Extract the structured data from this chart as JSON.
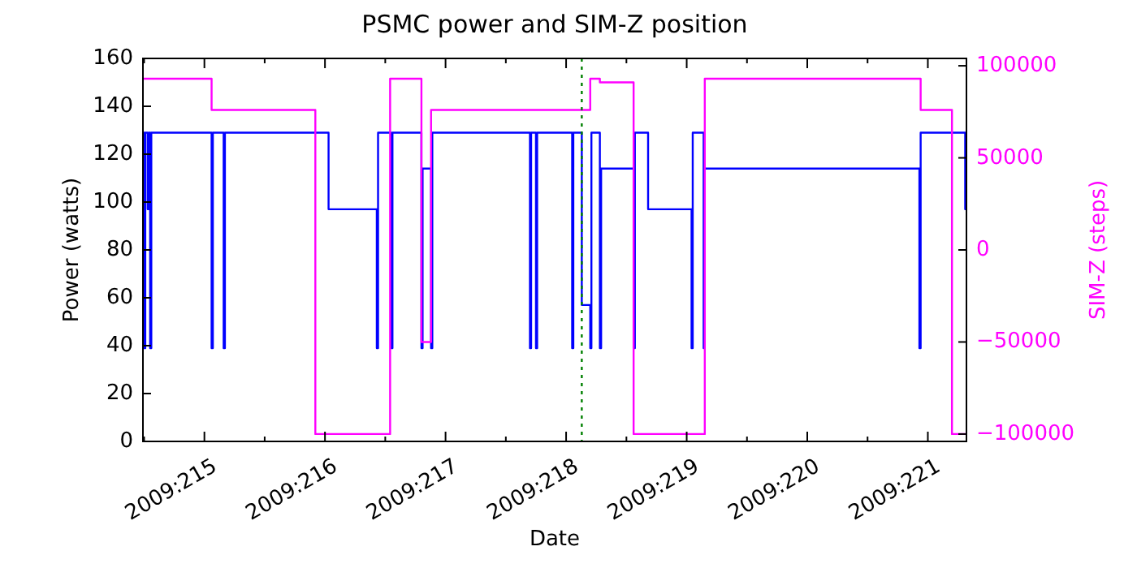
{
  "chart_data": {
    "type": "step",
    "title": "PSMC power and SIM-Z position",
    "xlabel": "Date",
    "ylabel": "Power (watts)",
    "y2label": "SIM-Z (steps)",
    "xlim": [
      "2009-08-02T11:46",
      "2009-08-09T07:41"
    ],
    "xticks": [
      {
        "value": "2009-08-02T12:00",
        "label": null
      },
      {
        "value": "2009-08-03",
        "label": "2009:215"
      },
      {
        "value": "2009-08-03T12:00",
        "label": null
      },
      {
        "value": "2009-08-04",
        "label": "2009:216"
      },
      {
        "value": "2009-08-04T12:00",
        "label": null
      },
      {
        "value": "2009-08-05",
        "label": "2009:217"
      },
      {
        "value": "2009-08-05T12:00",
        "label": null
      },
      {
        "value": "2009-08-06",
        "label": "2009:218"
      },
      {
        "value": "2009-08-06T12:00",
        "label": null
      },
      {
        "value": "2009-08-07",
        "label": "2009:219"
      },
      {
        "value": "2009-08-07T12:00",
        "label": null
      },
      {
        "value": "2009-08-08",
        "label": "2009:220"
      },
      {
        "value": "2009-08-08T12:00",
        "label": null
      },
      {
        "value": "2009-08-09",
        "label": "2009:221"
      }
    ],
    "ylim": [
      0,
      160
    ],
    "yticks": [
      0,
      20,
      40,
      60,
      80,
      100,
      120,
      140,
      160
    ],
    "y2lim": [
      -104000,
      104000
    ],
    "y2ticks": [
      -100000,
      -50000,
      0,
      50000,
      100000
    ],
    "grid": false,
    "series": [
      {
        "color": "#0000ff",
        "x": [
          "2009-08-02T11:46",
          "2009-08-02T12:00",
          "2009-08-02T12:14",
          "2009-08-02T12:43",
          "2009-08-02T12:58",
          "2009-08-02T13:12",
          "2009-08-02T13:26",
          "2009-08-03T01:26",
          "2009-08-03T01:41",
          "2009-08-03T03:50",
          "2009-08-03T04:05",
          "2009-08-04T00:43",
          "2009-08-04T10:19",
          "2009-08-04T10:34",
          "2009-08-04T13:12",
          "2009-08-04T13:26",
          "2009-08-04T19:12",
          "2009-08-04T19:26",
          "2009-08-04T21:07",
          "2009-08-04T21:22",
          "2009-08-05T16:48",
          "2009-08-05T17:02",
          "2009-08-05T18:00",
          "2009-08-05T18:14",
          "2009-08-06T01:12",
          "2009-08-06T01:26",
          "2009-08-06T03:07",
          "2009-08-06T04:48",
          "2009-08-06T05:02",
          "2009-08-06T06:43",
          "2009-08-06T06:58",
          "2009-08-06T13:26",
          "2009-08-06T13:41",
          "2009-08-06T16:19",
          "2009-08-07T00:58",
          "2009-08-07T01:12",
          "2009-08-07T03:22",
          "2009-08-07T03:36",
          "2009-08-08T22:19",
          "2009-08-08T22:34",
          "2009-08-09T07:26",
          "2009-08-09T07:41"
        ],
        "values": [
          129,
          39,
          129,
          97,
          129,
          39,
          129,
          39,
          129,
          39,
          129,
          97,
          39,
          129,
          39,
          129,
          39,
          114,
          39,
          129,
          39,
          129,
          39,
          129,
          39,
          129,
          57,
          39,
          129,
          39,
          114,
          39,
          129,
          97,
          39,
          129,
          39,
          114,
          39,
          129,
          97,
          97
        ]
      },
      {
        "color": "#ff00ff",
        "axis": "y2",
        "x": [
          "2009-08-02T11:46",
          "2009-08-03T01:26",
          "2009-08-03T22:05",
          "2009-08-04T12:58",
          "2009-08-04T19:12",
          "2009-08-04T21:07",
          "2009-08-06T04:48",
          "2009-08-06T06:43",
          "2009-08-06T13:26",
          "2009-08-07T03:36",
          "2009-08-08T22:34",
          "2009-08-09T04:48",
          "2009-08-09T07:41"
        ],
        "values": [
          93000,
          76000,
          -100000,
          93000,
          -50000,
          76000,
          93000,
          91000,
          -100000,
          93000,
          76000,
          -100000,
          -100000
        ]
      }
    ],
    "ref_lines": [
      {
        "axis": "x",
        "value": "2009-08-06T03:07",
        "color": "#008000",
        "line_style": "dotted"
      }
    ]
  }
}
